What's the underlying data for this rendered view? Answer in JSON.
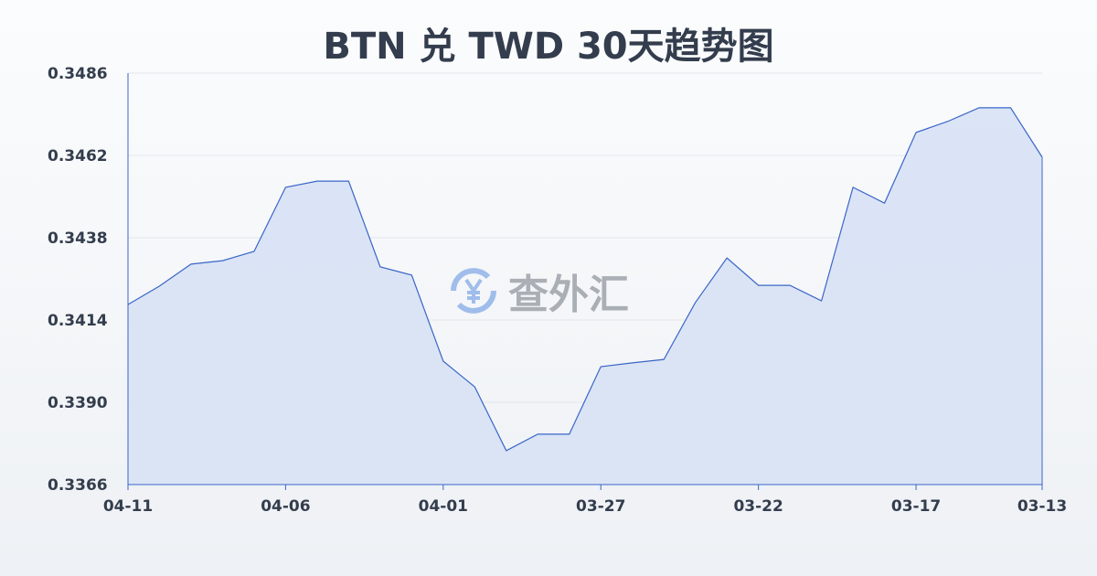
{
  "chart_data": {
    "type": "area",
    "title": "BTN 兑 TWD 30天趋势图",
    "x": [
      "04-11",
      "04-10",
      "04-09",
      "04-08",
      "04-07",
      "04-06",
      "04-05",
      "04-04",
      "04-03",
      "04-02",
      "04-01",
      "03-31",
      "03-30",
      "03-29",
      "03-28",
      "03-27",
      "03-26",
      "03-25",
      "03-24",
      "03-23",
      "03-22",
      "03-21",
      "03-20",
      "03-19",
      "03-18",
      "03-17",
      "03-16",
      "03-15",
      "03-14",
      "03-13"
    ],
    "values": [
      0.34185,
      0.34239,
      0.34303,
      0.34313,
      0.3434,
      0.34527,
      0.34545,
      0.34545,
      0.34295,
      0.34271,
      0.3402,
      0.33945,
      0.33759,
      0.33807,
      0.33807,
      0.34004,
      0.34015,
      0.34025,
      0.34191,
      0.34321,
      0.34241,
      0.34241,
      0.34196,
      0.34527,
      0.34481,
      0.34687,
      0.34719,
      0.34759,
      0.34759,
      0.34615
    ],
    "x_tick_labels": [
      "04-11",
      "04-06",
      "04-01",
      "03-27",
      "03-22",
      "03-17",
      "03-13"
    ],
    "y_tick_labels": [
      "0.3486",
      "0.3462",
      "0.3438",
      "0.3414",
      "0.3390",
      "0.3366"
    ],
    "ylim": [
      0.3366,
      0.3486
    ],
    "grid": true,
    "line_color": "#3a66c8",
    "fill_color": "#d6e1f5"
  },
  "watermark": {
    "text": "查外汇",
    "icon": "yen-exchange-icon"
  }
}
